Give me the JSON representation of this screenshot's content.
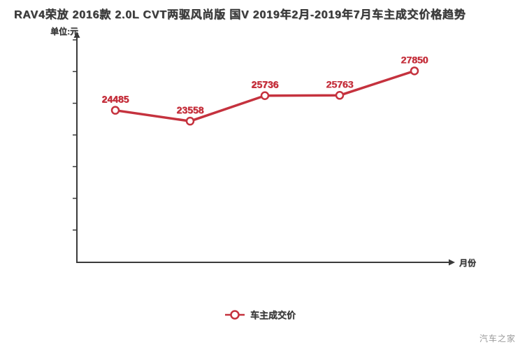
{
  "watermark": "汽车之家",
  "chart_data": {
    "type": "line",
    "title": "RAV4荣放 2016款 2.0L CVT两驱风尚版 国V 2019年2月-2019年7月车主成交价格趋势",
    "ylabel": "单位:元",
    "xlabel": "月份",
    "legend_position": "bottom",
    "grid": false,
    "ylim": [
      11500,
      30500
    ],
    "y_tick_count": 7,
    "x_tick_labels": [],
    "series": [
      {
        "name": "车主成交价",
        "color": "#c5323e",
        "values": [
          24485,
          23558,
          25736,
          25763,
          27850
        ],
        "labels": [
          "24485",
          "23558",
          "25736",
          "25763",
          "27850"
        ]
      }
    ]
  }
}
